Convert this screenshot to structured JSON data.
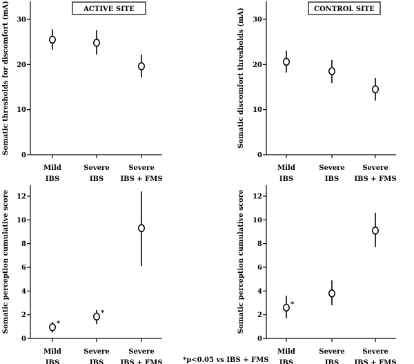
{
  "footnote": "*p<0.05 vs IBS + FMS",
  "chart_data": [
    {
      "type": "scatter",
      "title": "ACTIVE SITE",
      "ylabel": "Somatic thresholds for discomfort (mA)",
      "ylim": [
        0,
        30
      ],
      "yticks": [
        "0",
        "10",
        "20",
        "30"
      ],
      "categories": [
        [
          "Mild",
          "IBS"
        ],
        [
          "Severe",
          "IBS"
        ],
        [
          "Severe",
          "IBS + FMS"
        ]
      ],
      "means": [
        25.5,
        24.8,
        19.6
      ],
      "err_low": [
        23.3,
        22.2,
        17.1
      ],
      "err_high": [
        27.8,
        27.6,
        22.2
      ],
      "markers": [
        "",
        "",
        ""
      ]
    },
    {
      "type": "scatter",
      "title": "CONTROL SITE",
      "ylabel": "Somatic discomfort thresholds (mA)",
      "ylim": [
        0,
        30
      ],
      "yticks": [
        "0",
        "10",
        "20",
        "30"
      ],
      "categories": [
        [
          "Mild",
          "IBS"
        ],
        [
          "Severe",
          "IBS"
        ],
        [
          "Severe",
          "IBS + FMS"
        ]
      ],
      "means": [
        20.6,
        18.5,
        14.5
      ],
      "err_low": [
        18.2,
        15.9,
        12.0
      ],
      "err_high": [
        23.0,
        21.0,
        17.0
      ],
      "markers": [
        "",
        "",
        ""
      ]
    },
    {
      "type": "scatter",
      "title": "",
      "ylabel": "Somatic perception cumulative score",
      "ylim": [
        0,
        12
      ],
      "yticks": [
        "0",
        "2",
        "4",
        "6",
        "8",
        "10",
        "12"
      ],
      "categories": [
        [
          "Mild",
          "IBS"
        ],
        [
          "Severe",
          "IBS"
        ],
        [
          "Severe",
          "IBS + FMS"
        ]
      ],
      "means": [
        0.95,
        1.85,
        9.3
      ],
      "err_low": [
        0.5,
        1.2,
        6.1
      ],
      "err_high": [
        1.4,
        2.4,
        12.4
      ],
      "markers": [
        "*",
        "*",
        ""
      ]
    },
    {
      "type": "scatter",
      "title": "",
      "ylabel": "Somatic perception cumulative score",
      "ylim": [
        0,
        12
      ],
      "yticks": [
        "0",
        "2",
        "4",
        "6",
        "8",
        "10",
        "12"
      ],
      "categories": [
        [
          "Mild",
          "IBS"
        ],
        [
          "Severe",
          "IBS"
        ],
        [
          "Severe",
          "IBS + FMS"
        ]
      ],
      "means": [
        2.6,
        3.8,
        9.1
      ],
      "err_low": [
        1.7,
        2.8,
        7.7
      ],
      "err_high": [
        3.6,
        4.9,
        10.6
      ],
      "markers": [
        "*",
        "",
        ""
      ]
    }
  ]
}
